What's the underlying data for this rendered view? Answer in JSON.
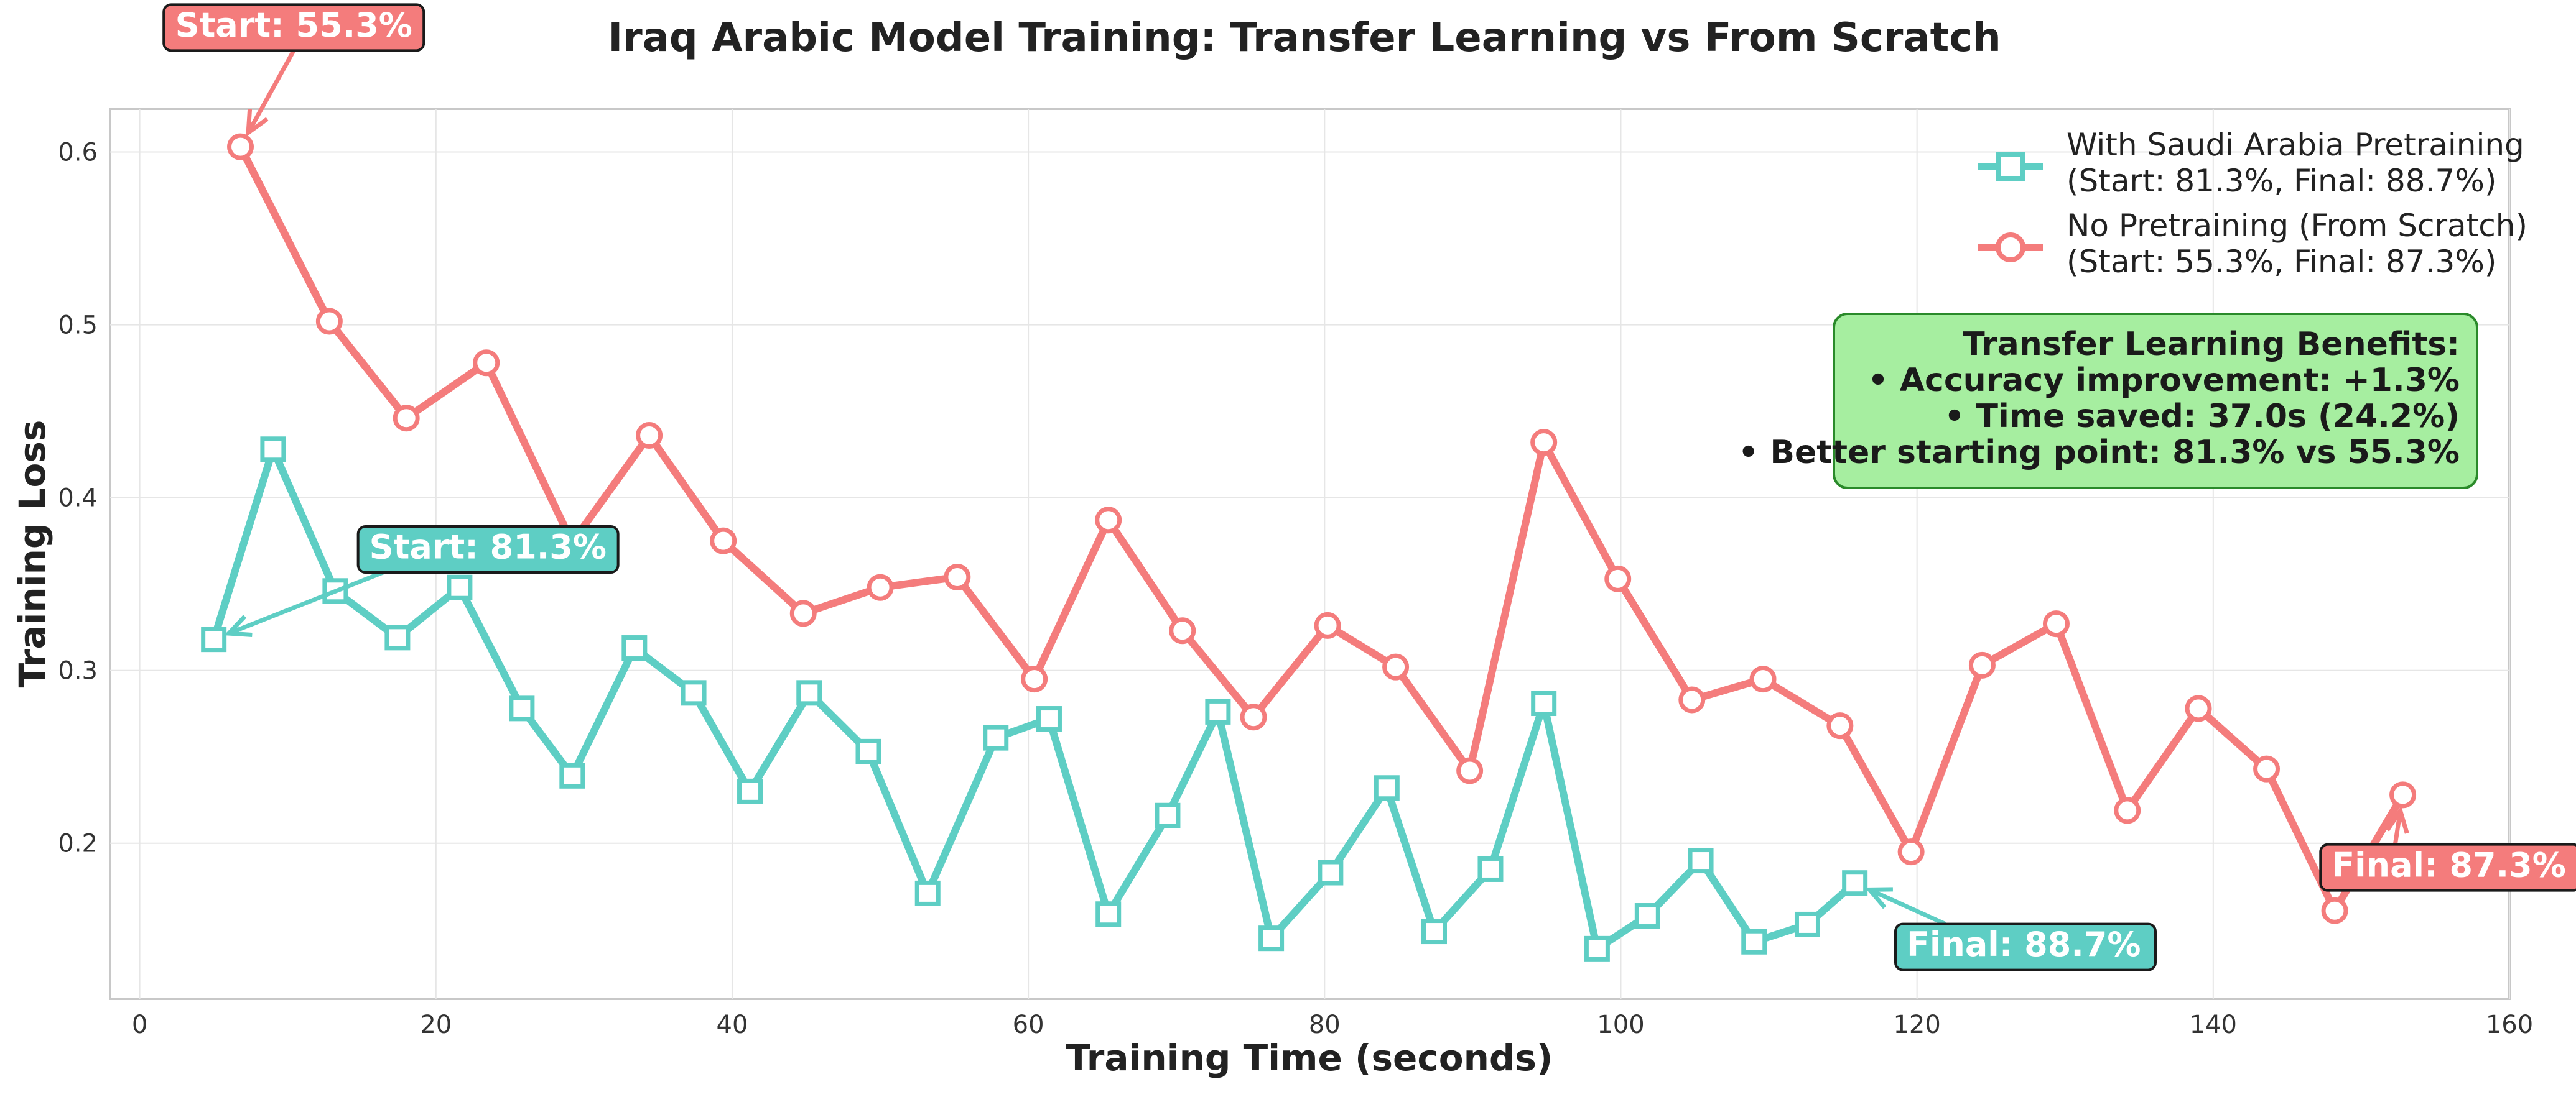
{
  "chart_data": {
    "type": "line",
    "title": "Iraq Arabic Model Training: Transfer Learning vs From Scratch",
    "xlabel": "Training Time (seconds)",
    "ylabel": "Training Loss",
    "xlim": [
      -2,
      160
    ],
    "ylim": [
      0.11,
      0.625
    ],
    "xticks": [
      0,
      20,
      40,
      60,
      80,
      100,
      120,
      140,
      160
    ],
    "yticks": [
      0.2,
      0.3,
      0.4,
      0.5,
      0.6
    ],
    "grid": true,
    "legend_position": "top-right",
    "colors": {
      "transfer": "#5ecec4",
      "scratch": "#f47c7c",
      "benefit_box": "#a6eea0",
      "benefit_border": "#2a8a2a"
    },
    "series": [
      {
        "id": "transfer",
        "name": "With Saudi Arabia Pretraining",
        "legend_detail": "(Start: 81.3%, Final: 88.7%)",
        "marker": "square",
        "color": "#5ecec4",
        "x": [
          5,
          9,
          13.2,
          17.4,
          21.6,
          25.8,
          29.2,
          33.4,
          37.4,
          41.2,
          45.2,
          49.2,
          53.2,
          57.8,
          61.4,
          65.4,
          69.4,
          72.8,
          76.4,
          80.4,
          84.2,
          87.4,
          91.2,
          94.8,
          98.4,
          101.8,
          105.4,
          109,
          112.6,
          115.8
        ],
        "y": [
          0.318,
          0.428,
          0.346,
          0.319,
          0.348,
          0.278,
          0.239,
          0.313,
          0.287,
          0.23,
          0.287,
          0.253,
          0.171,
          0.261,
          0.272,
          0.159,
          0.216,
          0.276,
          0.145,
          0.183,
          0.232,
          0.149,
          0.185,
          0.281,
          0.139,
          0.158,
          0.19,
          0.143,
          0.153,
          0.177
        ]
      },
      {
        "id": "scratch",
        "name": "No Pretraining (From Scratch)",
        "legend_detail": "(Start: 55.3%, Final: 87.3%)",
        "marker": "circle",
        "color": "#f47c7c",
        "x": [
          6.8,
          12.8,
          18,
          23.4,
          29.2,
          34.4,
          39.4,
          44.8,
          50,
          55.2,
          60.4,
          65.4,
          70.4,
          75.2,
          80.2,
          84.8,
          89.8,
          94.8,
          99.8,
          104.8,
          109.6,
          114.8,
          119.6,
          124.4,
          129.4,
          134.2,
          139,
          143.6,
          148.2,
          152.8
        ],
        "y": [
          0.603,
          0.502,
          0.446,
          0.478,
          0.374,
          0.436,
          0.375,
          0.333,
          0.348,
          0.354,
          0.295,
          0.387,
          0.323,
          0.273,
          0.326,
          0.302,
          0.242,
          0.432,
          0.353,
          0.283,
          0.295,
          0.268,
          0.195,
          0.303,
          0.327,
          0.219,
          0.278,
          0.243,
          0.161,
          0.228
        ]
      }
    ],
    "annotations": [
      {
        "id": "scratch_start",
        "text": "Start: 55.3%",
        "series": "scratch",
        "point_x": 6.8,
        "point_y": 0.603,
        "label_x": 10.4,
        "label_y": 0.672,
        "anchor": "middle"
      },
      {
        "id": "transfer_start",
        "text": "Start: 81.3%",
        "series": "transfer",
        "point_x": 5,
        "point_y": 0.318,
        "label_x": 15.5,
        "label_y": 0.37,
        "anchor": "start"
      },
      {
        "id": "transfer_final",
        "text": "Final: 88.7%",
        "series": "transfer",
        "point_x": 115.8,
        "point_y": 0.177,
        "label_x": 119.3,
        "label_y": 0.14,
        "anchor": "start"
      },
      {
        "id": "scratch_final",
        "text": "Final: 87.3%",
        "series": "scratch",
        "point_x": 152.8,
        "point_y": 0.228,
        "label_x": 148,
        "label_y": 0.186,
        "anchor": "start"
      }
    ],
    "benefits_box": {
      "lines": [
        "Transfer Learning Benefits:",
        "• Accuracy improvement: +1.3%",
        "• Time saved: 37.0s (24.2%)",
        "• Better starting point: 81.3% vs 55.3%"
      ]
    }
  }
}
